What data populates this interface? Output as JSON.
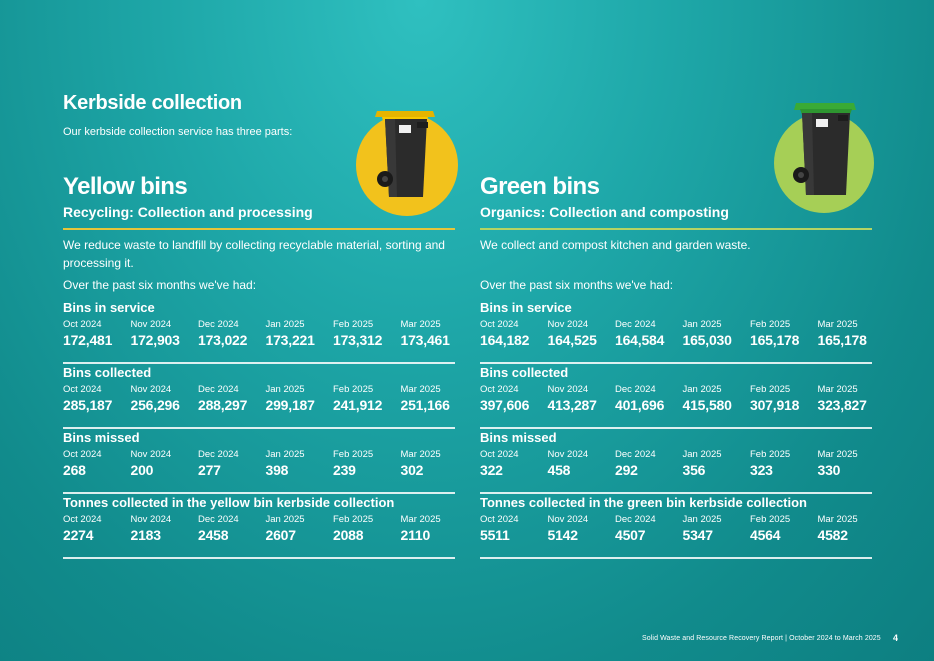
{
  "page": {
    "heading": "Kerbside collection",
    "intro": "Our kerbside collection service has three parts:",
    "footer": "Solid Waste and Resource Recovery Report | October 2024 to March 2025",
    "page_number": "4"
  },
  "colors": {
    "yellow_accent": "#f2c21c",
    "green_accent": "#a6cf56",
    "rule_yellow": "#e7c53a",
    "rule_green": "#b5d463"
  },
  "yellow": {
    "title": "Yellow bins",
    "subtitle": "Recycling: Collection and processing",
    "description": "We reduce waste to landfill by collecting recyclable material, sorting and processing it.",
    "period_text": "Over the past six months we've had:",
    "sections": [
      {
        "title": "Bins in service",
        "months": [
          "Oct 2024",
          "Nov 2024",
          "Dec 2024",
          "Jan 2025",
          "Feb 2025",
          "Mar 2025"
        ],
        "values": [
          "172,481",
          "172,903",
          "173,022",
          "173,221",
          "173,312",
          "173,461"
        ]
      },
      {
        "title": "Bins collected",
        "months": [
          "Oct 2024",
          "Nov 2024",
          "Dec 2024",
          "Jan 2025",
          "Feb 2025",
          "Mar 2025"
        ],
        "values": [
          "285,187",
          "256,296",
          "288,297",
          "299,187",
          "241,912",
          "251,166"
        ]
      },
      {
        "title": "Bins missed",
        "months": [
          "Oct 2024",
          "Nov 2024",
          "Dec 2024",
          "Jan 2025",
          "Feb 2025",
          "Mar 2025"
        ],
        "values": [
          "268",
          "200",
          "277",
          "398",
          "239",
          "302"
        ]
      },
      {
        "title": "Tonnes collected in the yellow bin kerbside collection",
        "months": [
          "Oct 2024",
          "Nov 2024",
          "Dec 2024",
          "Jan 2025",
          "Feb 2025",
          "Mar 2025"
        ],
        "values": [
          "2274",
          "2183",
          "2458",
          "2607",
          "2088",
          "2110"
        ]
      }
    ]
  },
  "green": {
    "title": "Green bins",
    "subtitle": "Organics: Collection and composting",
    "description": "We collect and compost kitchen and garden waste.",
    "period_text": "Over the past six months we've had:",
    "sections": [
      {
        "title": "Bins in service",
        "months": [
          "Oct 2024",
          "Nov 2024",
          "Dec 2024",
          "Jan 2025",
          "Feb 2025",
          "Mar 2025"
        ],
        "values": [
          "164,182",
          "164,525",
          "164,584",
          "165,030",
          "165,178",
          "165,178"
        ]
      },
      {
        "title": "Bins collected",
        "months": [
          "Oct 2024",
          "Nov 2024",
          "Dec 2024",
          "Jan 2025",
          "Feb 2025",
          "Mar 2025"
        ],
        "values": [
          "397,606",
          "413,287",
          "401,696",
          "415,580",
          "307,918",
          "323,827"
        ]
      },
      {
        "title": "Bins missed",
        "months": [
          "Oct 2024",
          "Nov 2024",
          "Dec 2024",
          "Jan 2025",
          "Feb 2025",
          "Mar 2025"
        ],
        "values": [
          "322",
          "458",
          "292",
          "356",
          "323",
          "330"
        ]
      },
      {
        "title": "Tonnes  collected in the green bin kerbside collection",
        "months": [
          "Oct 2024",
          "Nov 2024",
          "Dec 2024",
          "Jan 2025",
          "Feb 2025",
          "Mar 2025"
        ],
        "values": [
          "5511",
          "5142",
          "4507",
          "5347",
          "4564",
          "4582"
        ]
      }
    ]
  }
}
